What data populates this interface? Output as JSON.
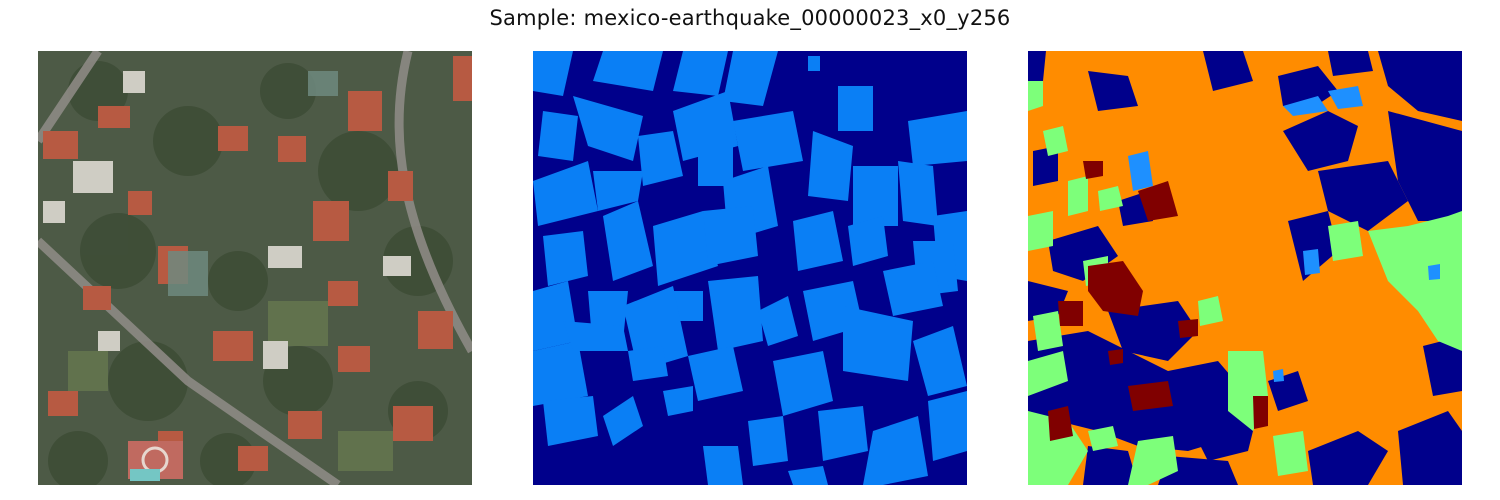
{
  "figure": {
    "title": "Sample: mexico-earthquake_00000023_x0_y256"
  },
  "panels": [
    {
      "id": "satellite-image",
      "content": "aerial RGB photo of residential neighborhood"
    },
    {
      "id": "ground-truth-mask",
      "content": "building footprint mask"
    },
    {
      "id": "prediction-map",
      "content": "predicted damage classes"
    }
  ],
  "colors": {
    "mask_background": "#00008b",
    "mask_building": "#0a7ff5",
    "pred_orange": "#ff8c00",
    "pred_navy": "#00008b",
    "pred_green": "#7dff7a",
    "pred_darkred": "#800000",
    "pred_lightblue": "#1e90ff",
    "photo_tree": "#47573c",
    "photo_roof_red": "#b75a42",
    "photo_roof_white": "#cfcdc4",
    "photo_road": "#8d8a84"
  }
}
